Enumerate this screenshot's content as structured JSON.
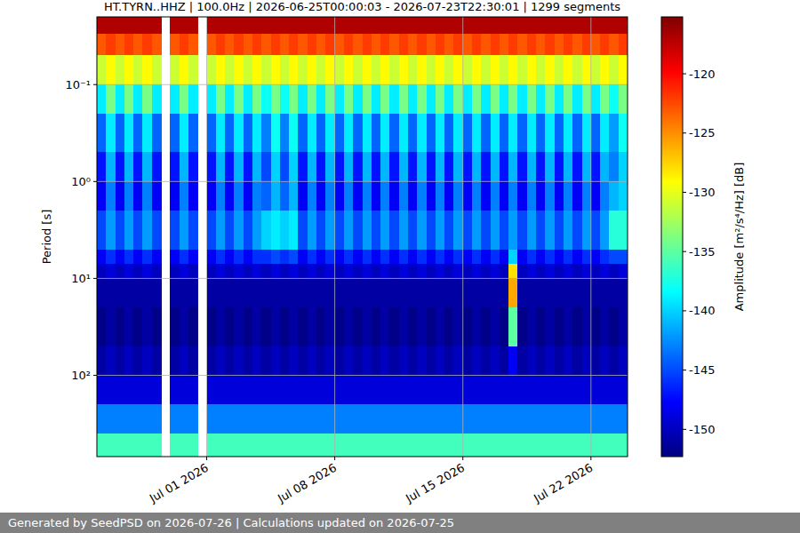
{
  "chart_data": {
    "type": "heatmap",
    "title": "HT.TYRN..HHZ | 100.0Hz | 2026-06-25T00:00:03 - 2026-07-23T22:30:01 | 1299 segments",
    "y_label": "Period [s]",
    "colorbar_label": "Amplitude [m²/s⁴/Hz] [dB]",
    "footer": "Generated by SeedPSD on 2026-07-26 | Calculations updated on 2026-07-25",
    "log": "y",
    "grid": true,
    "xlim": [
      "2026-06-25",
      "2026-07-24"
    ],
    "xticks": [
      {
        "value": "2026-07-01",
        "label": "Jul 01 2026"
      },
      {
        "value": "2026-07-08",
        "label": "Jul 08 2026"
      },
      {
        "value": "2026-07-15",
        "label": "Jul 15 2026"
      },
      {
        "value": "2026-07-22",
        "label": "Jul 22 2026"
      }
    ],
    "ylim": [
      690,
      0.02
    ],
    "yticks": [
      {
        "value": 0.1,
        "label": "10⁻¹"
      },
      {
        "value": 1,
        "label": "10⁰"
      },
      {
        "value": 10,
        "label": "10¹"
      },
      {
        "value": 100,
        "label": "10²"
      }
    ],
    "clim": [
      -152.3,
      -115.2
    ],
    "cticks": [
      -150,
      -145,
      -140,
      -135,
      -130,
      -125,
      -120
    ],
    "y_edges": [
      0.02,
      0.03,
      0.05,
      0.1,
      0.2,
      0.5,
      1,
      2,
      5,
      7,
      10,
      20,
      50,
      100,
      200,
      400,
      690
    ],
    "x": [
      "2026-06-25T00:00",
      "2026-06-25T12:00",
      "2026-06-26T00:00",
      "2026-06-26T12:00",
      "2026-06-27T00:00",
      "2026-06-27T12:00",
      "2026-06-28T00:00",
      "2026-06-28T12:00",
      "2026-06-29T00:00",
      "2026-06-29T12:00",
      "2026-06-30T00:00",
      "2026-06-30T12:00",
      "2026-07-01T00:00",
      "2026-07-01T12:00",
      "2026-07-02T00:00",
      "2026-07-02T12:00",
      "2026-07-03T00:00",
      "2026-07-03T12:00",
      "2026-07-04T00:00",
      "2026-07-04T12:00",
      "2026-07-05T00:00",
      "2026-07-05T12:00",
      "2026-07-06T00:00",
      "2026-07-06T12:00",
      "2026-07-07T00:00",
      "2026-07-07T12:00",
      "2026-07-08T00:00",
      "2026-07-08T12:00",
      "2026-07-09T00:00",
      "2026-07-09T12:00",
      "2026-07-10T00:00",
      "2026-07-10T12:00",
      "2026-07-11T00:00",
      "2026-07-11T12:00",
      "2026-07-12T00:00",
      "2026-07-12T12:00",
      "2026-07-13T00:00",
      "2026-07-13T12:00",
      "2026-07-14T00:00",
      "2026-07-14T12:00",
      "2026-07-15T00:00",
      "2026-07-15T12:00",
      "2026-07-16T00:00",
      "2026-07-16T12:00",
      "2026-07-17T00:00",
      "2026-07-17T12:00",
      "2026-07-18T00:00",
      "2026-07-18T12:00",
      "2026-07-19T00:00",
      "2026-07-19T12:00",
      "2026-07-20T00:00",
      "2026-07-20T12:00",
      "2026-07-21T00:00",
      "2026-07-21T12:00",
      "2026-07-22T00:00",
      "2026-07-22T12:00",
      "2026-07-23T00:00",
      "2026-07-23T12:00"
    ],
    "values": [
      [
        -117,
        -123,
        -131,
        -139,
        -144,
        -147,
        -148,
        -145,
        -148,
        -150,
        -151,
        -152,
        -151,
        -149,
        -143,
        -136
      ],
      [
        -117,
        -122,
        -129,
        -134,
        -139,
        -141,
        -143,
        -142,
        -146,
        -149,
        -151,
        -151,
        -150,
        -149,
        -143,
        -136
      ],
      [
        -117,
        -123,
        -131,
        -139,
        -144,
        -147,
        -148,
        -145,
        -148,
        -150,
        -151,
        -152,
        -151,
        -149,
        -143,
        -136
      ],
      [
        -117,
        -122,
        -129,
        -134,
        -139,
        -141,
        -143,
        -142,
        -146,
        -149,
        -151,
        -151,
        -150,
        -149,
        -143,
        -136
      ],
      [
        -117,
        -123,
        -131,
        -139,
        -144,
        -147,
        -148,
        -145,
        -148,
        -150,
        -151,
        -152,
        -151,
        -149,
        -143,
        -136
      ],
      [
        -117,
        -122,
        -129,
        -134,
        -139,
        -141,
        -143,
        -142,
        -146,
        -149,
        -151,
        -151,
        -150,
        -149,
        -143,
        -136
      ],
      [
        -117,
        -123,
        -131,
        -139,
        -144,
        -147,
        -148,
        -145,
        -148,
        -150,
        -151,
        -152,
        -151,
        -149,
        -143,
        -136
      ],
      null,
      [
        -117,
        -123,
        -131,
        -139,
        -144,
        -147,
        -148,
        -145,
        -148,
        -150,
        -151,
        -152,
        -151,
        -149,
        -143,
        -136
      ],
      [
        -117,
        -122,
        -129,
        -134,
        -139,
        -141,
        -143,
        -142,
        -146,
        -149,
        -151,
        -151,
        -150,
        -149,
        -143,
        -136
      ],
      [
        -117,
        -123,
        -131,
        -139,
        -144,
        -147,
        -148,
        -145,
        -148,
        -150,
        -151,
        -152,
        -151,
        -149,
        -143,
        -136
      ],
      null,
      [
        -117,
        -123,
        -131,
        -139,
        -144,
        -147,
        -148,
        -145,
        -148,
        -150,
        -151,
        -152,
        -151,
        -149,
        -143,
        -136
      ],
      [
        -117,
        -122,
        -129,
        -134,
        -139,
        -141,
        -143,
        -142,
        -146,
        -149,
        -151,
        -151,
        -150,
        -149,
        -143,
        -136
      ],
      [
        -117,
        -123,
        -131,
        -139,
        -144,
        -147,
        -148,
        -145,
        -148,
        -150,
        -151,
        -152,
        -151,
        -149,
        -143,
        -136
      ],
      [
        -117,
        -122,
        -129,
        -134,
        -139,
        -141,
        -143,
        -142,
        -146,
        -149,
        -151,
        -151,
        -150,
        -149,
        -143,
        -136
      ],
      [
        -117,
        -123,
        -131,
        -139,
        -144,
        -147,
        -148,
        -145,
        -148,
        -150,
        -151,
        -152,
        -151,
        -149,
        -143,
        -136
      ],
      [
        -117,
        -122,
        -129,
        -134,
        -139,
        -141,
        -143,
        -142,
        -146,
        -149,
        -151,
        -151,
        -150,
        -149,
        -143,
        -136
      ],
      [
        -117,
        -123,
        -131,
        -138,
        -143,
        -145,
        -144,
        -140,
        -146,
        -150,
        -151,
        -152,
        -151,
        -149,
        -143,
        -136
      ],
      [
        -117,
        -122,
        -129,
        -134,
        -138,
        -140,
        -141,
        -139,
        -145,
        -149,
        -151,
        -151,
        -150,
        -149,
        -143,
        -136
      ],
      [
        -117,
        -123,
        -131,
        -138,
        -143,
        -145,
        -144,
        -140,
        -146,
        -150,
        -151,
        -152,
        -151,
        -149,
        -143,
        -136
      ],
      [
        -117,
        -122,
        -129,
        -134,
        -138,
        -140,
        -141,
        -139,
        -145,
        -149,
        -151,
        -151,
        -150,
        -149,
        -143,
        -136
      ],
      [
        -117,
        -123,
        -131,
        -139,
        -144,
        -147,
        -148,
        -145,
        -148,
        -150,
        -151,
        -152,
        -151,
        -149,
        -143,
        -136
      ],
      [
        -117,
        -122,
        -129,
        -134,
        -139,
        -141,
        -143,
        -142,
        -146,
        -149,
        -151,
        -151,
        -150,
        -149,
        -143,
        -136
      ],
      [
        -117,
        -123,
        -131,
        -139,
        -144,
        -147,
        -148,
        -145,
        -148,
        -150,
        -151,
        -152,
        -151,
        -149,
        -143,
        -136
      ],
      [
        -117,
        -122,
        -129,
        -134,
        -139,
        -141,
        -143,
        -142,
        -146,
        -149,
        -151,
        -151,
        -150,
        -149,
        -143,
        -136
      ],
      [
        -117,
        -123,
        -131,
        -139,
        -144,
        -147,
        -148,
        -145,
        -148,
        -150,
        -151,
        -152,
        -151,
        -149,
        -143,
        -136
      ],
      [
        -117,
        -122,
        -129,
        -134,
        -139,
        -141,
        -143,
        -142,
        -146,
        -149,
        -151,
        -151,
        -150,
        -149,
        -143,
        -136
      ],
      [
        -117,
        -123,
        -131,
        -139,
        -144,
        -147,
        -148,
        -145,
        -148,
        -150,
        -151,
        -152,
        -151,
        -149,
        -143,
        -136
      ],
      [
        -117,
        -122,
        -129,
        -134,
        -139,
        -141,
        -143,
        -142,
        -146,
        -149,
        -151,
        -151,
        -150,
        -149,
        -143,
        -136
      ],
      [
        -117,
        -123,
        -131,
        -139,
        -144,
        -147,
        -148,
        -145,
        -148,
        -150,
        -151,
        -152,
        -151,
        -149,
        -143,
        -136
      ],
      [
        -117,
        -122,
        -129,
        -134,
        -139,
        -141,
        -143,
        -142,
        -146,
        -149,
        -151,
        -151,
        -150,
        -149,
        -143,
        -136
      ],
      [
        -117,
        -123,
        -131,
        -139,
        -144,
        -147,
        -148,
        -145,
        -148,
        -150,
        -151,
        -152,
        -151,
        -149,
        -143,
        -136
      ],
      [
        -117,
        -122,
        -129,
        -134,
        -139,
        -141,
        -143,
        -142,
        -146,
        -149,
        -151,
        -151,
        -150,
        -149,
        -143,
        -136
      ],
      [
        -117,
        -123,
        -131,
        -139,
        -144,
        -147,
        -148,
        -145,
        -148,
        -150,
        -151,
        -152,
        -151,
        -149,
        -143,
        -136
      ],
      [
        -117,
        -122,
        -129,
        -134,
        -139,
        -141,
        -143,
        -142,
        -146,
        -149,
        -151,
        -151,
        -150,
        -149,
        -143,
        -136
      ],
      [
        -117,
        -123,
        -131,
        -139,
        -144,
        -147,
        -148,
        -145,
        -148,
        -150,
        -151,
        -152,
        -151,
        -149,
        -143,
        -136
      ],
      [
        -117,
        -122,
        -129,
        -134,
        -139,
        -141,
        -143,
        -142,
        -146,
        -149,
        -151,
        -151,
        -150,
        -149,
        -143,
        -136
      ],
      [
        -117,
        -123,
        -131,
        -139,
        -144,
        -147,
        -148,
        -145,
        -148,
        -150,
        -151,
        -152,
        -151,
        -149,
        -143,
        -136
      ],
      [
        -117,
        -122,
        -129,
        -134,
        -139,
        -141,
        -143,
        -142,
        -146,
        -149,
        -151,
        -151,
        -150,
        -149,
        -143,
        -136
      ],
      [
        -117,
        -123,
        -131,
        -139,
        -144,
        -147,
        -148,
        -145,
        -148,
        -150,
        -151,
        -152,
        -151,
        -149,
        -143,
        -136
      ],
      [
        -117,
        -122,
        -129,
        -134,
        -139,
        -141,
        -143,
        -142,
        -146,
        -149,
        -151,
        -151,
        -150,
        -149,
        -143,
        -136
      ],
      [
        -117,
        -123,
        -131,
        -139,
        -144,
        -147,
        -148,
        -145,
        -148,
        -150,
        -151,
        -152,
        -151,
        -149,
        -143,
        -136
      ],
      [
        -117,
        -122,
        -129,
        -134,
        -139,
        -141,
        -143,
        -142,
        -146,
        -149,
        -151,
        -151,
        -150,
        -149,
        -143,
        -136
      ],
      [
        -117,
        -123,
        -131,
        -139,
        -144,
        -147,
        -148,
        -145,
        -148,
        -150,
        -151,
        -152,
        -151,
        -149,
        -143,
        -136
      ],
      [
        -117,
        -122,
        -129,
        -134,
        -139,
        -141,
        -143,
        -142,
        -140,
        -128,
        -126,
        -135,
        -148,
        -149,
        -143,
        -136
      ],
      [
        -117,
        -123,
        -131,
        -139,
        -144,
        -147,
        -148,
        -145,
        -148,
        -150,
        -151,
        -152,
        -151,
        -149,
        -143,
        -136
      ],
      [
        -117,
        -122,
        -129,
        -134,
        -139,
        -141,
        -143,
        -142,
        -146,
        -149,
        -151,
        -151,
        -150,
        -149,
        -143,
        -136
      ],
      [
        -117,
        -123,
        -131,
        -139,
        -144,
        -147,
        -148,
        -145,
        -148,
        -150,
        -151,
        -152,
        -151,
        -149,
        -143,
        -136
      ],
      [
        -117,
        -122,
        -129,
        -134,
        -139,
        -141,
        -143,
        -142,
        -146,
        -149,
        -151,
        -151,
        -150,
        -149,
        -143,
        -136
      ],
      [
        -117,
        -123,
        -131,
        -139,
        -144,
        -147,
        -148,
        -145,
        -148,
        -150,
        -151,
        -152,
        -151,
        -149,
        -143,
        -136
      ],
      [
        -117,
        -122,
        -129,
        -134,
        -139,
        -141,
        -143,
        -142,
        -146,
        -149,
        -151,
        -151,
        -150,
        -149,
        -143,
        -136
      ],
      [
        -117,
        -123,
        -131,
        -139,
        -144,
        -147,
        -148,
        -145,
        -148,
        -150,
        -151,
        -152,
        -151,
        -149,
        -143,
        -136
      ],
      [
        -117,
        -122,
        -129,
        -134,
        -139,
        -141,
        -143,
        -142,
        -146,
        -149,
        -151,
        -151,
        -150,
        -149,
        -143,
        -136
      ],
      [
        -117,
        -123,
        -131,
        -139,
        -144,
        -147,
        -148,
        -145,
        -148,
        -150,
        -151,
        -152,
        -151,
        -149,
        -143,
        -136
      ],
      [
        -117,
        -122,
        -129,
        -134,
        -139,
        -141,
        -143,
        -142,
        -146,
        -149,
        -151,
        -151,
        -150,
        -149,
        -143,
        -136
      ],
      [
        -117,
        -123,
        -131,
        -138,
        -142,
        -143,
        -141,
        -137,
        -145,
        -150,
        -151,
        -152,
        -151,
        -149,
        -143,
        -136
      ],
      [
        -117,
        -122,
        -129,
        -134,
        -138,
        -140,
        -140,
        -137,
        -145,
        -149,
        -151,
        -151,
        -150,
        -149,
        -143,
        -136
      ]
    ]
  }
}
